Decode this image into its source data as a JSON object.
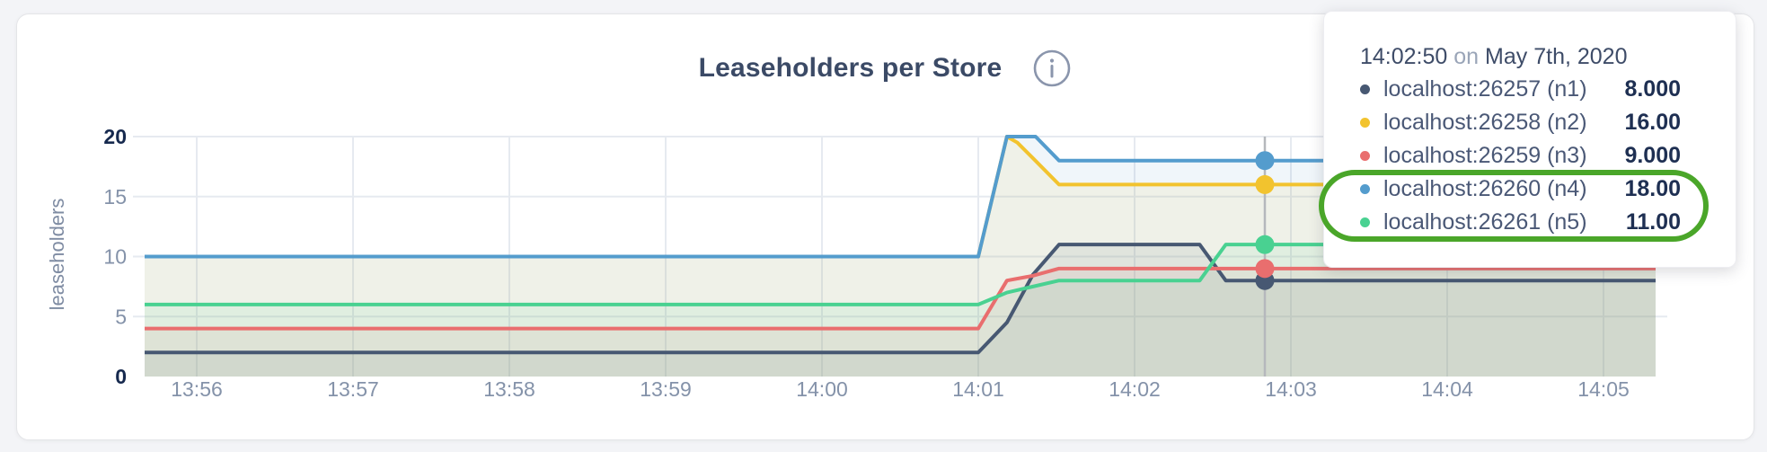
{
  "page": {
    "background": "#f3f4f7",
    "card_background": "#ffffff"
  },
  "chart_data": {
    "type": "area",
    "title": "Leaseholders per Store",
    "ylabel": "leaseholders",
    "ylim": [
      0,
      20
    ],
    "yticks": [
      0,
      5,
      10,
      15,
      20
    ],
    "major_yticks": [
      0,
      20
    ],
    "grid": true,
    "legend_position": "hover-tooltip",
    "x_reference": "seconds after 13:55:40",
    "xdomain": [
      0,
      580
    ],
    "xticks": [
      {
        "t": 20,
        "label": "13:56"
      },
      {
        "t": 80,
        "label": "13:57"
      },
      {
        "t": 140,
        "label": "13:58"
      },
      {
        "t": 200,
        "label": "13:59"
      },
      {
        "t": 260,
        "label": "14:00"
      },
      {
        "t": 320,
        "label": "14:01"
      },
      {
        "t": 380,
        "label": "14:02"
      },
      {
        "t": 440,
        "label": "14:03"
      },
      {
        "t": 500,
        "label": "14:04"
      },
      {
        "t": 560,
        "label": "14:05"
      }
    ],
    "hover": {
      "t": 430,
      "time": "14:02:50",
      "date": "May 7th, 2020"
    },
    "series": [
      {
        "name": "localhost:26257 (n1)",
        "color": "#475872",
        "hover_value_label": "8.000",
        "hover_value": 8,
        "points": [
          [
            0,
            2
          ],
          [
            320,
            2
          ],
          [
            331,
            4.5
          ],
          [
            341,
            8.5
          ],
          [
            351,
            11
          ],
          [
            405,
            11
          ],
          [
            415,
            8
          ],
          [
            580,
            8
          ]
        ]
      },
      {
        "name": "localhost:26258 (n2)",
        "color": "#f2c32e",
        "hover_value_label": "16.00",
        "hover_value": 16,
        "points": [
          [
            0,
            10
          ],
          [
            320,
            10
          ],
          [
            331,
            20
          ],
          [
            335,
            19.5
          ],
          [
            341,
            18.2
          ],
          [
            351,
            16
          ],
          [
            580,
            16
          ]
        ]
      },
      {
        "name": "localhost:26259 (n3)",
        "color": "#e96e6e",
        "hover_value_label": "9.000",
        "hover_value": 9,
        "points": [
          [
            0,
            4
          ],
          [
            320,
            4
          ],
          [
            331,
            8
          ],
          [
            341,
            8.4
          ],
          [
            351,
            9
          ],
          [
            580,
            9
          ]
        ]
      },
      {
        "name": "localhost:26260 (n4)",
        "color": "#549ccd",
        "hover_value_label": "18.00",
        "hover_value": 18,
        "points": [
          [
            0,
            10
          ],
          [
            320,
            10
          ],
          [
            331,
            20
          ],
          [
            342,
            20
          ],
          [
            351,
            18
          ],
          [
            580,
            18
          ]
        ]
      },
      {
        "name": "localhost:26261 (n5)",
        "color": "#49d191",
        "hover_value_label": "11.00",
        "hover_value": 11,
        "points": [
          [
            0,
            6
          ],
          [
            320,
            6
          ],
          [
            331,
            7
          ],
          [
            341,
            7.5
          ],
          [
            351,
            8
          ],
          [
            405,
            8
          ],
          [
            415,
            11
          ],
          [
            580,
            11
          ]
        ]
      }
    ],
    "area_fill_opacity": 0.09,
    "guideline_color": "#b5b8bc",
    "gridline_color": "#e6eaf0",
    "tick_color_minor": "#8492a9",
    "tick_color_major": "#16294e"
  },
  "tooltip": {
    "time": "14:02:50",
    "on_word": "on",
    "date": "May 7th, 2020"
  },
  "annotation": {
    "shape": "rounded-ellipse",
    "color": "#4aa629",
    "highlights": [
      "localhost:26260 (n4)",
      "localhost:26261 (n5)"
    ]
  },
  "icons": {
    "info": "i"
  }
}
